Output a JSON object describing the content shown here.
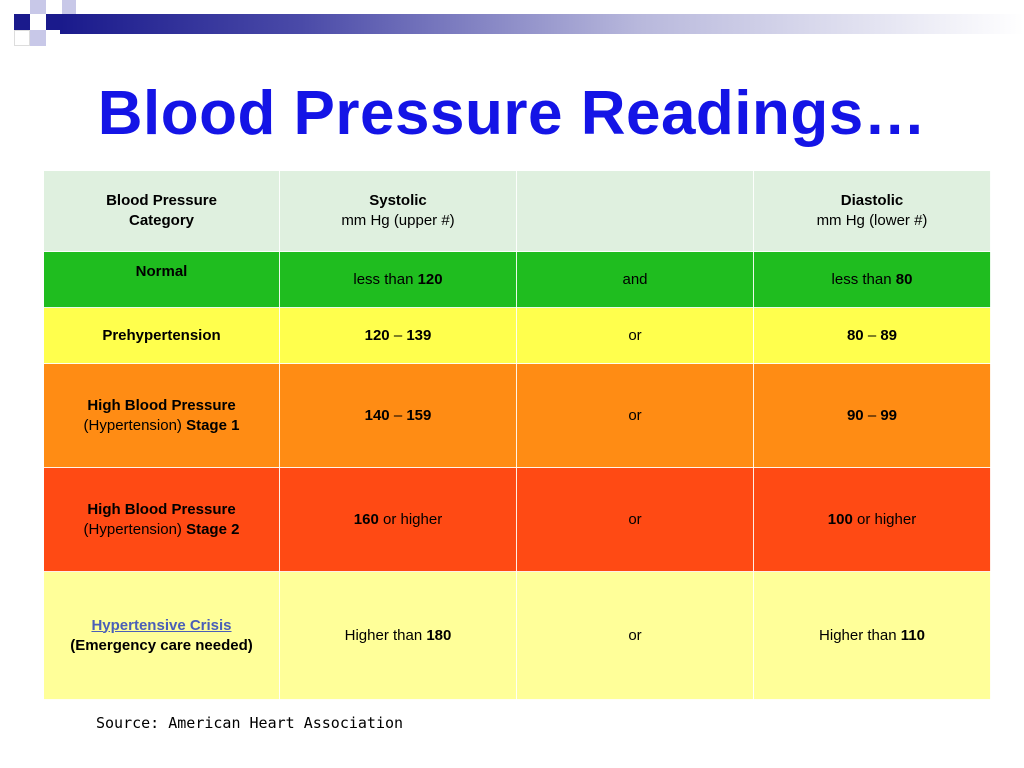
{
  "slide": {
    "title": "Blood Pressure Readings…",
    "source": "Source: American Heart Association",
    "colors": {
      "title": "#1414e6",
      "header_bg": "#dff0df",
      "normal_bg": "#1fbd1f",
      "prehypertension_bg": "#ffff4d",
      "stage1_bg": "#ff8c14",
      "stage2_bg": "#ff4a14",
      "crisis_bg": "#ffff99"
    }
  },
  "table": {
    "header": {
      "category": [
        "Blood Pressure",
        "Category"
      ],
      "systolic": [
        "Systolic",
        "mm Hg (upper #)"
      ],
      "diastolic": [
        "Diastolic",
        "mm Hg (lower #)"
      ]
    },
    "rows": [
      {
        "category": "Normal",
        "systolic_prefix": "less than ",
        "systolic_value": "120",
        "systolic_suffix": "",
        "conjunction": "and",
        "diastolic_prefix": "less than ",
        "diastolic_value": "80",
        "diastolic_suffix": ""
      },
      {
        "category": "Prehypertension",
        "systolic_range": [
          "120",
          "139"
        ],
        "conjunction": "or",
        "diastolic_range": [
          "80",
          "89"
        ]
      },
      {
        "category_line1": "High Blood Pressure",
        "category_line2_prefix": "(Hypertension) ",
        "category_line2_stage": "Stage 1",
        "systolic_range": [
          "140",
          "159"
        ],
        "conjunction": "or",
        "diastolic_range": [
          "90",
          "99"
        ]
      },
      {
        "category_line1": "High Blood Pressure",
        "category_line2_prefix": "(Hypertension) ",
        "category_line2_stage": "Stage 2",
        "systolic_value": "160",
        "systolic_suffix": " or higher",
        "conjunction": "or",
        "diastolic_value": "100",
        "diastolic_suffix": " or higher"
      },
      {
        "category_link": "Hypertensive Crisis",
        "category_line2": "(Emergency care needed)",
        "systolic_prefix": "Higher than ",
        "systolic_value": "180",
        "conjunction": "or",
        "diastolic_prefix": "Higher than ",
        "diastolic_value": "110"
      }
    ],
    "range_dash": " – "
  }
}
